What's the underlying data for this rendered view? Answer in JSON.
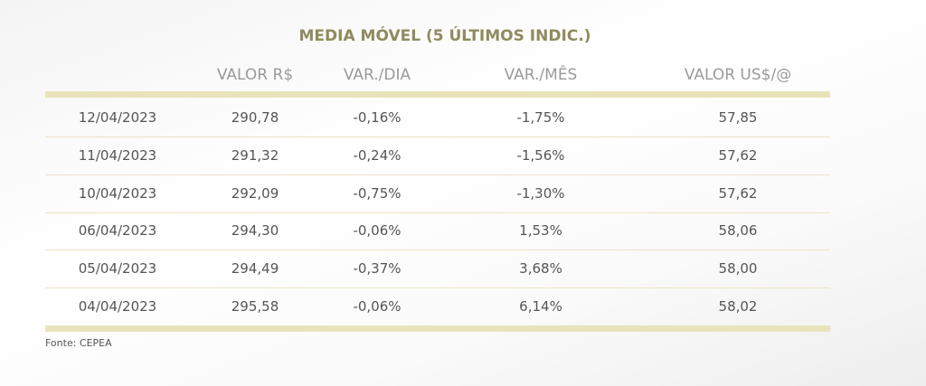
{
  "title": "MEDIA MÓVEL (5 ÚLTIMOS INDIC.)",
  "table": {
    "headers": [
      "VALOR R$",
      "VAR./DIA",
      "VAR./MÊS",
      "VALOR US$/@"
    ],
    "rows": [
      [
        "12/04/2023",
        "290,78",
        "-0,16%",
        "-1,75%",
        "57,85"
      ],
      [
        "11/04/2023",
        "291,32",
        "-0,24%",
        "-1,56%",
        "57,62"
      ],
      [
        "10/04/2023",
        "292,09",
        "-0,75%",
        "-1,30%",
        "57,62"
      ],
      [
        "06/04/2023",
        "294,30",
        "-0,06%",
        "1,53%",
        "58,06"
      ],
      [
        "05/04/2023",
        "294,49",
        "-0,37%",
        "3,68%",
        "58,00"
      ],
      [
        "04/04/2023",
        "295,58",
        "-0,06%",
        "6,14%",
        "58,02"
      ]
    ]
  },
  "source": "Fonte: CEPEA"
}
